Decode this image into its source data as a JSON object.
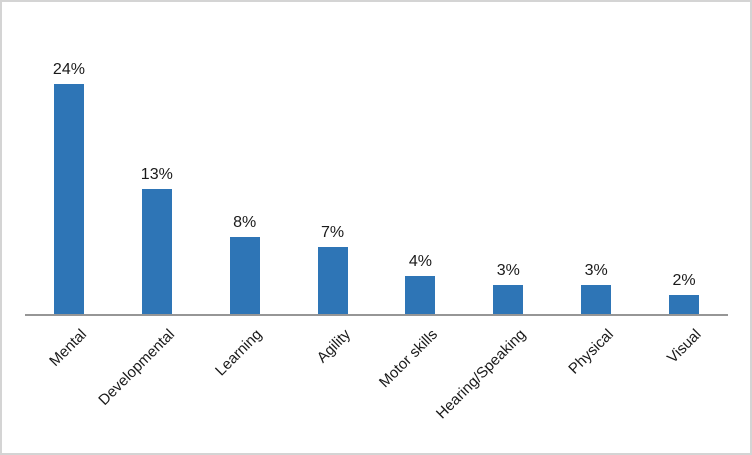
{
  "chart_data": {
    "type": "bar",
    "title": "",
    "xlabel": "",
    "ylabel": "",
    "categories": [
      "Mental",
      "Developmental",
      "Learning",
      "Agility",
      "Motor skills",
      "Hearing/Speaking",
      "Physical",
      "Visual"
    ],
    "values": [
      24,
      13,
      8,
      7,
      4,
      3,
      3,
      2
    ],
    "data_labels": [
      "24%",
      "13%",
      "8%",
      "7%",
      "4%",
      "3%",
      "3%",
      "2%"
    ],
    "ylim": [
      0,
      25
    ],
    "grid": false,
    "legend": false,
    "y_axis_visible": false,
    "x_tick_rotation_deg": 45,
    "data_label_position": "above-bar",
    "colors": {
      "bar": "#2E75B6",
      "axis_line": "#969696",
      "label_text": "#1a1a1a",
      "background": "#ffffff",
      "border": "#d4d4d4"
    }
  }
}
